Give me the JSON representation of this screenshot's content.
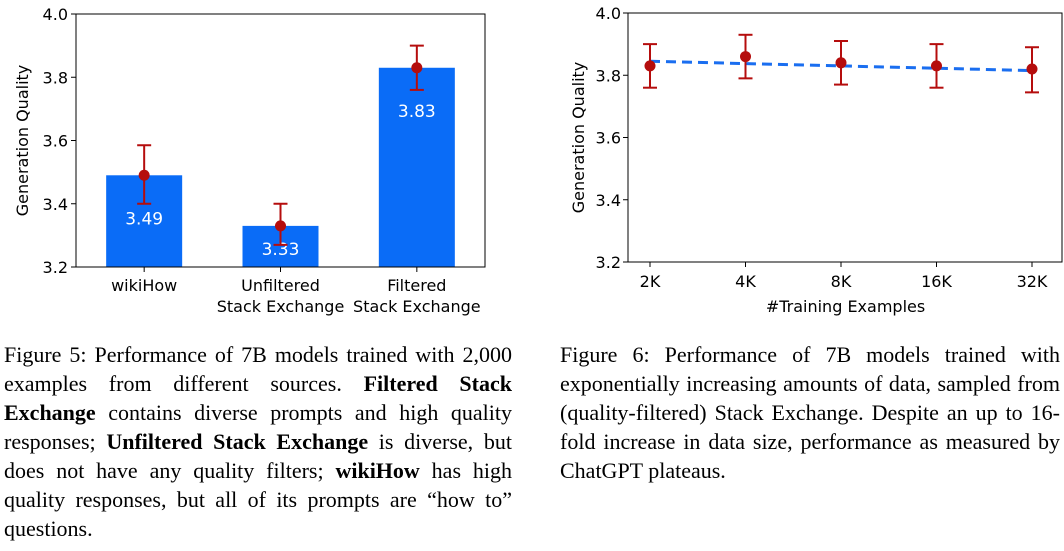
{
  "colors": {
    "bar": "#0a6cf7",
    "point": "#b50d0d",
    "line": "#1a6ef0",
    "axis": "#000000"
  },
  "chart_data": [
    {
      "type": "bar",
      "categories": [
        "wikiHow",
        "Unfiltered Stack Exchange",
        "Filtered Stack Exchange"
      ],
      "category_lines": [
        [
          "wikiHow"
        ],
        [
          "Unfiltered",
          "Stack Exchange"
        ],
        [
          "Filtered",
          "Stack Exchange"
        ]
      ],
      "values": [
        3.49,
        3.33,
        3.83
      ],
      "value_labels": [
        "3.49",
        "3.33",
        "3.83"
      ],
      "error_low": [
        3.4,
        3.27,
        3.76
      ],
      "error_high": [
        3.585,
        3.4,
        3.9
      ],
      "ylabel": "Generation Quality",
      "ylim": [
        3.2,
        4.0
      ],
      "yticks": [
        "3.2",
        "3.4",
        "3.6",
        "3.8",
        "4.0"
      ]
    },
    {
      "type": "line",
      "x": [
        "2K",
        "4K",
        "8K",
        "16K",
        "32K"
      ],
      "values": [
        3.83,
        3.86,
        3.84,
        3.83,
        3.82
      ],
      "trend_start": 3.845,
      "trend_end": 3.815,
      "error_low": [
        3.76,
        3.79,
        3.77,
        3.76,
        3.745
      ],
      "error_high": [
        3.9,
        3.93,
        3.91,
        3.9,
        3.89
      ],
      "xlabel": "#Training Examples",
      "ylabel": "Generation Quality",
      "ylim": [
        3.2,
        4.0
      ],
      "yticks": [
        "3.2",
        "3.4",
        "3.6",
        "3.8",
        "4.0"
      ]
    }
  ],
  "captions": {
    "fig5": {
      "p1": "Figure 5: Performance of 7B models trained with 2,000 examples from different sources. ",
      "b1": "Filtered Stack Exchange",
      "p2": " contains diverse prompts and high quality responses; ",
      "b2": "Unfiltered Stack Exchange",
      "p3": " is diverse, but does not have any quality filters; ",
      "b3": "wikiHow",
      "p4": " has high quality responses, but all of its prompts are “how to” questions."
    },
    "fig6": "Figure 6: Performance of 7B models trained with exponentially increasing amounts of data, sampled from (quality-filtered) Stack Exchange. Despite an up to 16-fold increase in data size, performance as measured by ChatGPT plateaus."
  }
}
